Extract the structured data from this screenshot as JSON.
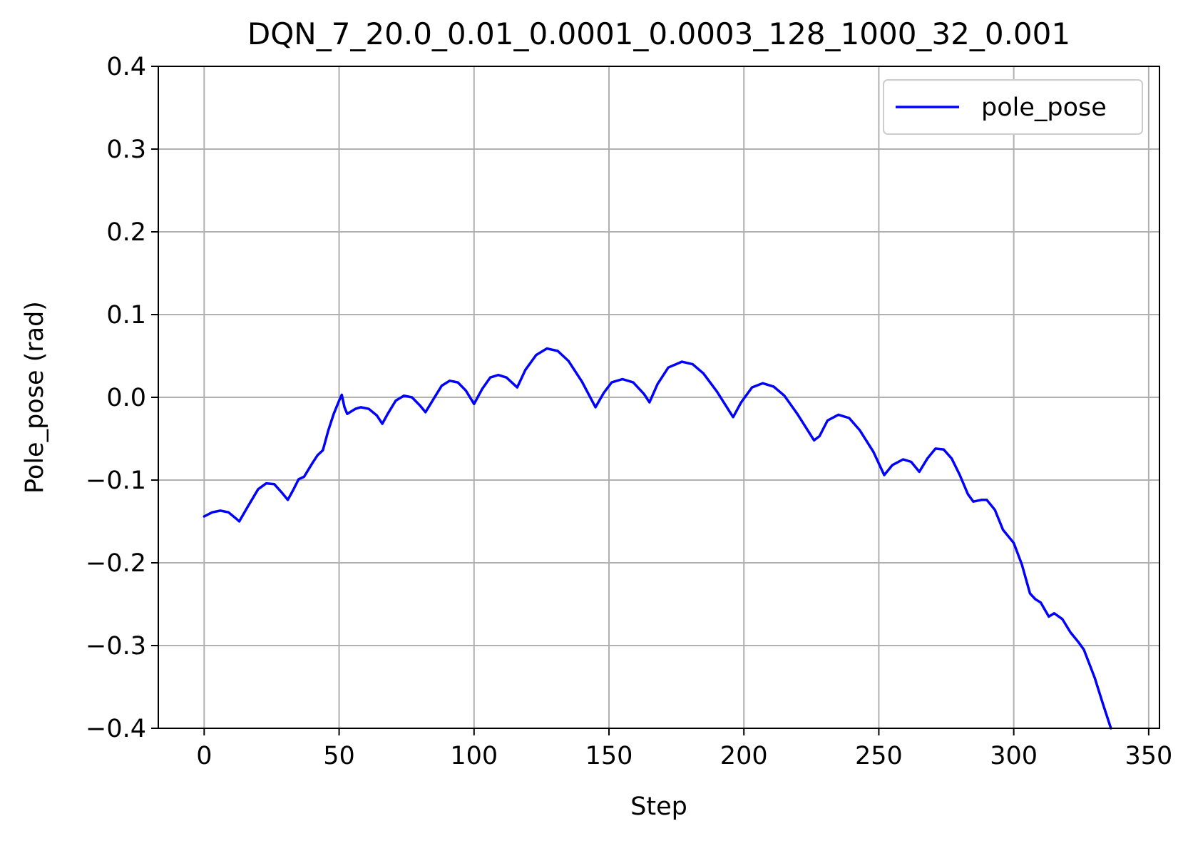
{
  "chart_data": {
    "type": "line",
    "title": "DQN_7_20.0_0.01_0.0001_0.0003_128_1000_32_0.001",
    "xlabel": "Step",
    "ylabel": "Pole_pose (rad)",
    "xlim": [
      -17,
      354
    ],
    "ylim": [
      -0.4,
      0.4
    ],
    "grid": true,
    "legend_position": "top-right",
    "x_ticks": [
      0,
      50,
      100,
      150,
      200,
      250,
      300,
      350
    ],
    "y_ticks": [
      -0.4,
      -0.3,
      -0.2,
      -0.1,
      0.0,
      0.1,
      0.2,
      0.3,
      0.4
    ],
    "x_tick_labels": [
      "0",
      "50",
      "100",
      "150",
      "200",
      "250",
      "300",
      "350"
    ],
    "y_tick_labels": [
      "−0.4",
      "−0.3",
      "−0.2",
      "−0.1",
      "0.0",
      "0.1",
      "0.2",
      "0.3",
      "0.4"
    ],
    "series": [
      {
        "name": "pole_pose",
        "color": "#0000ff",
        "points": [
          [
            0,
            -0.144
          ],
          [
            3,
            -0.139
          ],
          [
            6,
            -0.137
          ],
          [
            9,
            -0.139
          ],
          [
            12,
            -0.147
          ],
          [
            13,
            -0.15
          ],
          [
            16,
            -0.133
          ],
          [
            20,
            -0.111
          ],
          [
            23,
            -0.104
          ],
          [
            26,
            -0.105
          ],
          [
            29,
            -0.116
          ],
          [
            31,
            -0.124
          ],
          [
            33,
            -0.112
          ],
          [
            35,
            -0.099
          ],
          [
            37,
            -0.096
          ],
          [
            40,
            -0.08
          ],
          [
            42,
            -0.07
          ],
          [
            44,
            -0.064
          ],
          [
            46,
            -0.04
          ],
          [
            48,
            -0.02
          ],
          [
            50,
            -0.004
          ],
          [
            51,
            0.003
          ],
          [
            52,
            -0.012
          ],
          [
            53,
            -0.02
          ],
          [
            56,
            -0.014
          ],
          [
            58,
            -0.012
          ],
          [
            61,
            -0.014
          ],
          [
            64,
            -0.022
          ],
          [
            66,
            -0.032
          ],
          [
            68,
            -0.02
          ],
          [
            71,
            -0.004
          ],
          [
            74,
            0.002
          ],
          [
            77,
            0.0
          ],
          [
            80,
            -0.01
          ],
          [
            82,
            -0.018
          ],
          [
            85,
            -0.002
          ],
          [
            88,
            0.014
          ],
          [
            91,
            0.02
          ],
          [
            94,
            0.018
          ],
          [
            97,
            0.008
          ],
          [
            100,
            -0.008
          ],
          [
            103,
            0.01
          ],
          [
            106,
            0.024
          ],
          [
            109,
            0.027
          ],
          [
            112,
            0.024
          ],
          [
            116,
            0.012
          ],
          [
            119,
            0.033
          ],
          [
            123,
            0.051
          ],
          [
            127,
            0.059
          ],
          [
            131,
            0.056
          ],
          [
            135,
            0.044
          ],
          [
            140,
            0.019
          ],
          [
            145,
            -0.012
          ],
          [
            148,
            0.005
          ],
          [
            151,
            0.018
          ],
          [
            155,
            0.022
          ],
          [
            159,
            0.018
          ],
          [
            163,
            0.004
          ],
          [
            165,
            -0.006
          ],
          [
            168,
            0.016
          ],
          [
            172,
            0.036
          ],
          [
            177,
            0.043
          ],
          [
            181,
            0.04
          ],
          [
            185,
            0.029
          ],
          [
            190,
            0.007
          ],
          [
            196,
            -0.024
          ],
          [
            199,
            -0.006
          ],
          [
            203,
            0.012
          ],
          [
            207,
            0.017
          ],
          [
            211,
            0.013
          ],
          [
            215,
            0.002
          ],
          [
            220,
            -0.021
          ],
          [
            226,
            -0.052
          ],
          [
            228,
            -0.047
          ],
          [
            231,
            -0.028
          ],
          [
            235,
            -0.021
          ],
          [
            239,
            -0.025
          ],
          [
            243,
            -0.04
          ],
          [
            248,
            -0.066
          ],
          [
            252,
            -0.094
          ],
          [
            255,
            -0.082
          ],
          [
            259,
            -0.075
          ],
          [
            262,
            -0.078
          ],
          [
            265,
            -0.09
          ],
          [
            268,
            -0.074
          ],
          [
            271,
            -0.062
          ],
          [
            274,
            -0.063
          ],
          [
            277,
            -0.074
          ],
          [
            280,
            -0.094
          ],
          [
            283,
            -0.117
          ],
          [
            285,
            -0.126
          ],
          [
            288,
            -0.124
          ],
          [
            290,
            -0.124
          ],
          [
            293,
            -0.136
          ],
          [
            296,
            -0.16
          ],
          [
            300,
            -0.176
          ],
          [
            303,
            -0.202
          ],
          [
            306,
            -0.237
          ],
          [
            308,
            -0.244
          ],
          [
            310,
            -0.248
          ],
          [
            313,
            -0.265
          ],
          [
            315,
            -0.261
          ],
          [
            318,
            -0.268
          ],
          [
            321,
            -0.284
          ],
          [
            324,
            -0.296
          ],
          [
            326,
            -0.305
          ],
          [
            330,
            -0.339
          ],
          [
            333,
            -0.37
          ],
          [
            336,
            -0.4
          ]
        ]
      }
    ]
  }
}
